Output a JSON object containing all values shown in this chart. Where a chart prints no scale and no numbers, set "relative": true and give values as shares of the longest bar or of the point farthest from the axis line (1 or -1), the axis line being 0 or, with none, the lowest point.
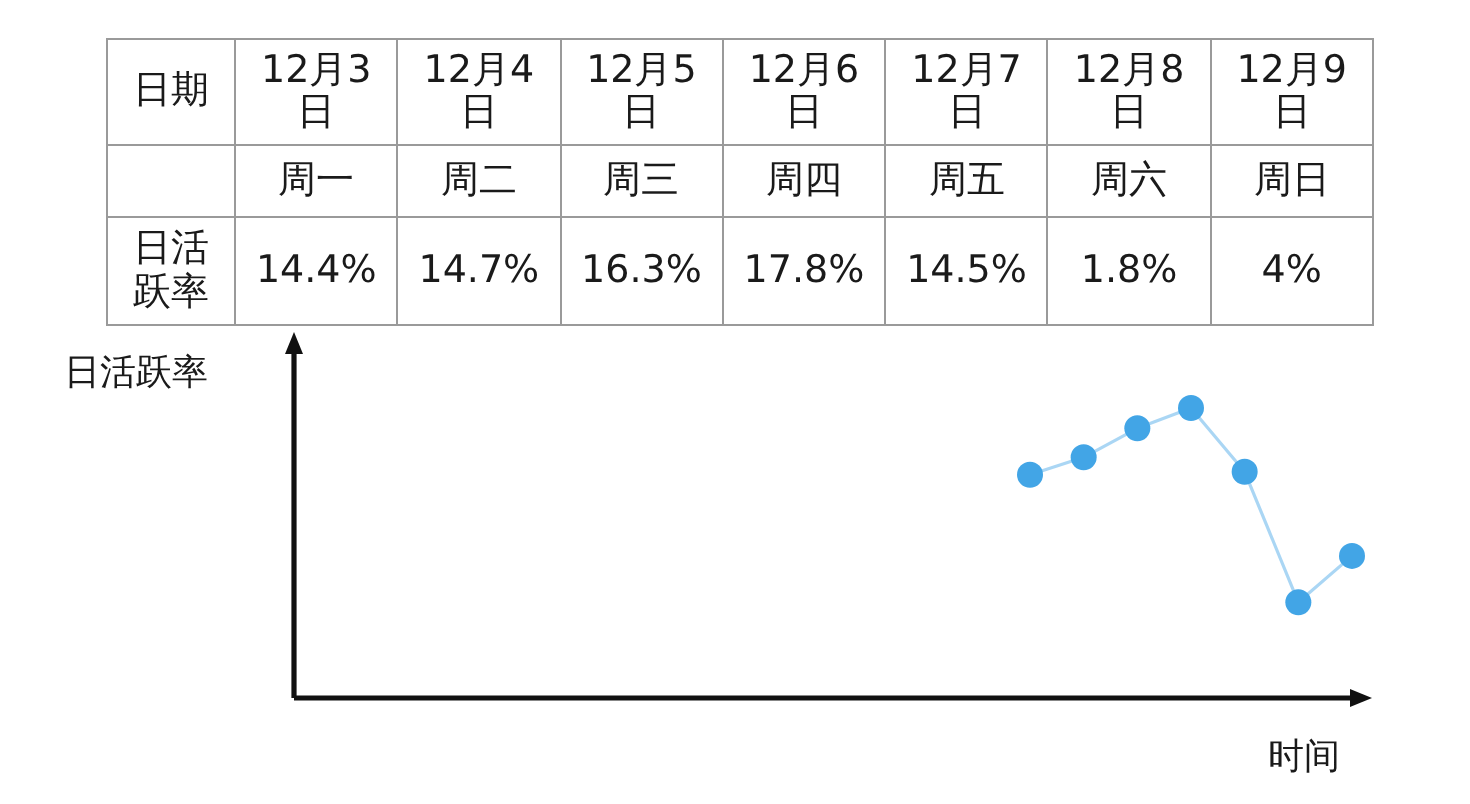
{
  "chart_data": [
    {
      "type": "other",
      "ylabel": "日活跃率",
      "categories": [
        "12月3日",
        "12月4日",
        "12月5日",
        "12月6日",
        "12月7日",
        "12月8日",
        "12月9日"
      ],
      "values": [
        14.4,
        14.7,
        16.3,
        17.8,
        14.5,
        1.8,
        4
      ],
      "value_labels": [
        "14.4%",
        "14.7%",
        "16.3%",
        "17.8%",
        "14.5%",
        "1.8%",
        "4%"
      ],
      "annotations": [
        "日期",
        {
          "text": "周一",
          "x": "12月3日"
        },
        {
          "text": "周二",
          "x": "12月4日"
        },
        {
          "text": "周三",
          "x": "12月5日"
        },
        {
          "text": "周四",
          "x": "12月6日"
        },
        {
          "text": "周五",
          "x": "12月7日"
        },
        {
          "text": "周六",
          "x": "12月8日"
        },
        {
          "text": "周日",
          "x": "12月9日"
        }
      ]
    },
    {
      "type": "line",
      "relative": true,
      "xlabel": "时间",
      "ylabel": "日活跃率",
      "categories": [
        null,
        null,
        null,
        null,
        null,
        null,
        null
      ],
      "series": [
        {
          "color": "#42a5e6",
          "values": [
            0.77,
            0.83,
            0.93,
            1,
            0.78,
            0.33,
            0.49
          ]
        }
      ],
      "marker": "circle"
    }
  ]
}
